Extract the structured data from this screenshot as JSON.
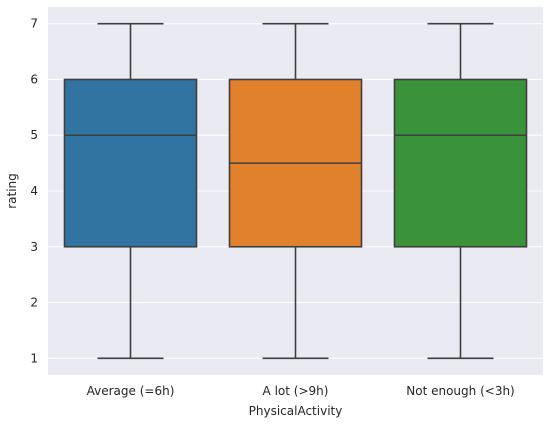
{
  "chart_data": {
    "type": "box",
    "title": "",
    "xlabel": "PhysicalActivity",
    "ylabel": "rating",
    "ylim": [
      0.7,
      7.3
    ],
    "yticks": [
      1,
      2,
      3,
      4,
      5,
      6,
      7
    ],
    "grid": true,
    "categories": [
      "Average (=6h)",
      "A lot (>9h)",
      "Not enough (<3h)"
    ],
    "boxes": [
      {
        "category": "Average (=6h)",
        "min": 1,
        "q1": 3,
        "median": 5,
        "q3": 6,
        "max": 7,
        "color": "#3274a1"
      },
      {
        "category": "A lot (>9h)",
        "min": 1,
        "q1": 3,
        "median": 4.5,
        "q3": 6,
        "max": 7,
        "color": "#e1812c"
      },
      {
        "category": "Not enough (<3h)",
        "min": 1,
        "q1": 3,
        "median": 5,
        "q3": 6,
        "max": 7,
        "color": "#3a923a"
      }
    ],
    "background_color": "#eaeaf2",
    "line_color": "#3f3f3f"
  }
}
